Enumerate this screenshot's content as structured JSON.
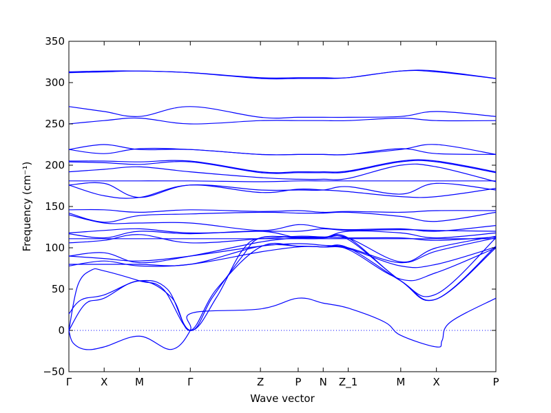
{
  "chart_data": {
    "type": "line",
    "title": "",
    "xlabel": "Wave vector",
    "ylabel": "Frequency (cm⁻¹)",
    "ylim": [
      -50,
      350
    ],
    "yticks": [
      -50,
      0,
      50,
      100,
      150,
      200,
      250,
      300,
      350
    ],
    "xlim": [
      0,
      10.41
    ],
    "x_ticks": [
      {
        "label": "Γ",
        "x": 0
      },
      {
        "label": "X",
        "x": 0.86
      },
      {
        "label": "M",
        "x": 1.72
      },
      {
        "label": "Γ",
        "x": 2.96
      },
      {
        "label": "Z",
        "x": 4.67
      },
      {
        "label": "P",
        "x": 5.59
      },
      {
        "label": "N",
        "x": 6.2
      },
      {
        "label": "Z_1",
        "x": 6.81
      },
      {
        "label": "M",
        "x": 8.09
      },
      {
        "label": "X",
        "x": 8.96
      },
      {
        "label": "P",
        "x": 10.41
      }
    ],
    "zero_reference_line": 0,
    "line_color": "#0000ff",
    "grid": false,
    "legend": "none",
    "series": [
      {
        "x": [
          0,
          0.86,
          1.72,
          2.96,
          4.67,
          5.59,
          6.2,
          6.81,
          8.09,
          8.96,
          10.41
        ],
        "values": [
          312,
          313,
          314,
          312,
          305,
          305,
          305,
          306,
          314,
          313,
          305
        ]
      },
      {
        "x": [
          0,
          0.86,
          1.72,
          2.96,
          4.67,
          5.59,
          6.2,
          6.81,
          8.09,
          8.96,
          10.41
        ],
        "values": [
          313,
          314,
          314,
          312,
          306,
          306,
          306,
          306,
          314,
          314,
          305
        ]
      },
      {
        "x": [
          0,
          0.86,
          1.72,
          2.96,
          4.67,
          5.59,
          6.2,
          6.81,
          8.09,
          8.96,
          10.41
        ],
        "values": [
          271,
          265,
          259,
          271,
          258,
          258,
          258,
          258,
          259,
          265,
          259
        ]
      },
      {
        "x": [
          0,
          0.86,
          1.72,
          2.96,
          4.67,
          5.59,
          6.2,
          6.81,
          8.09,
          8.96,
          10.41
        ],
        "values": [
          250,
          254,
          257,
          250,
          254,
          254,
          254,
          254,
          257,
          254,
          254
        ]
      },
      {
        "x": [
          0,
          0.86,
          1.72,
          2.96,
          4.67,
          5.59,
          6.2,
          6.81,
          8.09,
          8.96,
          10.41
        ],
        "values": [
          219,
          225,
          219,
          219,
          213,
          213,
          213,
          213,
          219,
          225,
          213
        ]
      },
      {
        "x": [
          0,
          0.86,
          1.72,
          2.96,
          4.67,
          5.59,
          6.2,
          6.81,
          8.09,
          8.96,
          10.41
        ],
        "values": [
          219,
          214,
          220,
          219,
          213,
          213,
          213,
          213,
          220,
          214,
          213
        ]
      },
      {
        "x": [
          0,
          0.86,
          1.72,
          2.96,
          4.67,
          5.59,
          6.2,
          6.81,
          8.09,
          8.96,
          10.41
        ],
        "values": [
          205,
          205,
          204,
          205,
          192,
          192,
          192,
          193,
          205,
          205,
          192
        ]
      },
      {
        "x": [
          0,
          0.86,
          1.72,
          2.96,
          4.67,
          5.59,
          6.2,
          6.81,
          8.09,
          8.96,
          10.41
        ],
        "values": [
          204,
          203,
          201,
          204,
          191,
          191,
          191,
          192,
          204,
          204,
          191
        ]
      },
      {
        "x": [
          0,
          0.86,
          1.72,
          2.96,
          4.67,
          5.59,
          6.2,
          6.81,
          8.09,
          8.96,
          10.41
        ],
        "values": [
          192,
          195,
          198,
          192,
          185,
          183,
          183,
          184,
          200,
          198,
          180
        ]
      },
      {
        "x": [
          0,
          0.86,
          1.72,
          2.96,
          4.67,
          5.59,
          6.2,
          6.81,
          8.09,
          8.96,
          10.41
        ],
        "values": [
          181,
          181,
          181,
          181,
          180,
          181,
          181,
          181,
          181,
          181,
          181
        ]
      },
      {
        "x": [
          0,
          0.86,
          1.72,
          2.96,
          4.67,
          5.59,
          6.2,
          6.81,
          8.09,
          8.96,
          10.41
        ],
        "values": [
          176,
          178,
          161,
          176,
          170,
          170,
          170,
          174,
          165,
          178,
          170
        ]
      },
      {
        "x": [
          0,
          0.86,
          1.72,
          2.96,
          4.67,
          5.59,
          6.2,
          6.81,
          8.09,
          8.96,
          10.41
        ],
        "values": [
          176,
          163,
          161,
          176,
          167,
          171,
          170,
          168,
          162,
          162,
          172
        ]
      },
      {
        "x": [
          0,
          0.86,
          1.72,
          2.96,
          4.67,
          5.59,
          6.2,
          6.81,
          8.09,
          8.96,
          10.41
        ],
        "values": [
          146,
          146,
          143,
          146,
          144,
          145,
          143,
          144,
          143,
          145,
          145
        ]
      },
      {
        "x": [
          0,
          0.86,
          1.72,
          2.96,
          4.67,
          5.59,
          6.2,
          6.81,
          8.09,
          8.96,
          10.41
        ],
        "values": [
          142,
          131,
          139,
          141,
          143,
          142,
          142,
          143,
          138,
          132,
          143
        ]
      },
      {
        "x": [
          0,
          0.86,
          1.72,
          2.96,
          4.67,
          5.59,
          6.2,
          6.81,
          8.09,
          8.96,
          10.41
        ],
        "values": [
          140,
          130,
          130,
          130,
          121,
          128,
          124,
          122,
          123,
          120,
          127
        ]
      },
      {
        "x": [
          0,
          0.86,
          1.72,
          2.96,
          4.67,
          5.59,
          6.2,
          6.81,
          8.09,
          8.96,
          10.41
        ],
        "values": [
          118,
          121,
          123,
          118,
          120,
          120,
          123,
          121,
          122,
          121,
          120
        ]
      },
      {
        "x": [
          0,
          0.86,
          1.72,
          2.96,
          4.67,
          5.59,
          6.2,
          6.81,
          8.09,
          8.96,
          10.41
        ],
        "values": [
          117,
          112,
          120,
          117,
          120,
          112,
          112,
          120,
          118,
          112,
          118
        ]
      },
      {
        "x": [
          0,
          0.86,
          1.72,
          2.96,
          4.67,
          5.59,
          6.2,
          6.81,
          8.09,
          8.96,
          10.41
        ],
        "values": [
          111,
          111,
          111,
          111,
          111,
          111,
          111,
          111,
          111,
          111,
          111
        ]
      },
      {
        "x": [
          0,
          0.86,
          1.72,
          2.96,
          4.67,
          5.59,
          6.2,
          6.81,
          8.09,
          8.96,
          10.41
        ],
        "values": [
          106,
          109,
          116,
          106,
          111,
          114,
          113,
          112,
          112,
          109,
          113
        ]
      },
      {
        "x": [
          0,
          0.86,
          1.72,
          2.96,
          4.67,
          5.59,
          6.2,
          6.81,
          8.09,
          8.96,
          10.41
        ],
        "values": [
          90,
          94,
          82,
          90,
          107,
          112,
          113,
          112,
          83,
          100,
          114
        ]
      },
      {
        "x": [
          0,
          0.86,
          1.72,
          2.96,
          4.67,
          5.59,
          6.2,
          6.81,
          8.09,
          8.96,
          10.41
        ],
        "values": [
          90,
          87,
          84,
          90,
          102,
          105,
          103,
          100,
          82,
          96,
          112
        ]
      },
      {
        "x": [
          0,
          0.86,
          1.72,
          2.96,
          4.67,
          5.59,
          6.2,
          6.81,
          8.09,
          8.96,
          10.41
        ],
        "values": [
          80,
          80,
          80,
          80,
          102,
          102,
          101,
          99,
          78,
          80,
          101
        ]
      },
      {
        "x": [
          0,
          0.86,
          1.72,
          2.96,
          4.67,
          5.59,
          6.2,
          6.81,
          8.09,
          8.96,
          10.41
        ],
        "values": [
          78,
          84,
          78,
          80,
          95,
          101,
          101,
          98,
          62,
          70,
          100
        ]
      },
      {
        "x": [
          0,
          0.22,
          0.55,
          0.86,
          1.72,
          2.3,
          2.96,
          3.5,
          4.2,
          4.67,
          5.59,
          6.2,
          6.81,
          8.09,
          8.96,
          10.41
        ],
        "values": [
          0,
          55,
          73,
          72,
          60,
          50,
          0,
          40,
          88,
          112,
          112,
          112,
          112,
          60,
          44,
          112
        ]
      },
      {
        "x": [
          0,
          0.3,
          0.86,
          1.72,
          2.4,
          2.96,
          3.6,
          4.2,
          4.67,
          5.59,
          6.2,
          6.81,
          8.09,
          8.96,
          10.41
        ],
        "values": [
          20,
          37,
          43,
          60,
          50,
          0,
          40,
          95,
          112,
          113,
          112,
          110,
          60,
          38,
          102
        ]
      },
      {
        "x": [
          0,
          0.4,
          0.86,
          1.72,
          2.5,
          2.96,
          3.6,
          4.67,
          5.59,
          6.2,
          6.81,
          8.09,
          8.96,
          10.41
        ],
        "values": [
          0,
          32,
          39,
          60,
          40,
          0,
          50,
          101,
          102,
          101,
          100,
          60,
          38,
          100
        ]
      },
      {
        "x": [
          0,
          0.1,
          0.4,
          0.86,
          1.72,
          2.5,
          2.96,
          3.0,
          4.67,
          5.59,
          6.2,
          6.81,
          7.7,
          8.09,
          8.96,
          9.1,
          9.3,
          10.41
        ],
        "values": [
          0,
          -15,
          -23,
          -20,
          -7,
          -23,
          0,
          21,
          26,
          39,
          33,
          27,
          10,
          -6,
          -20,
          -12,
          10,
          39
        ]
      }
    ]
  }
}
